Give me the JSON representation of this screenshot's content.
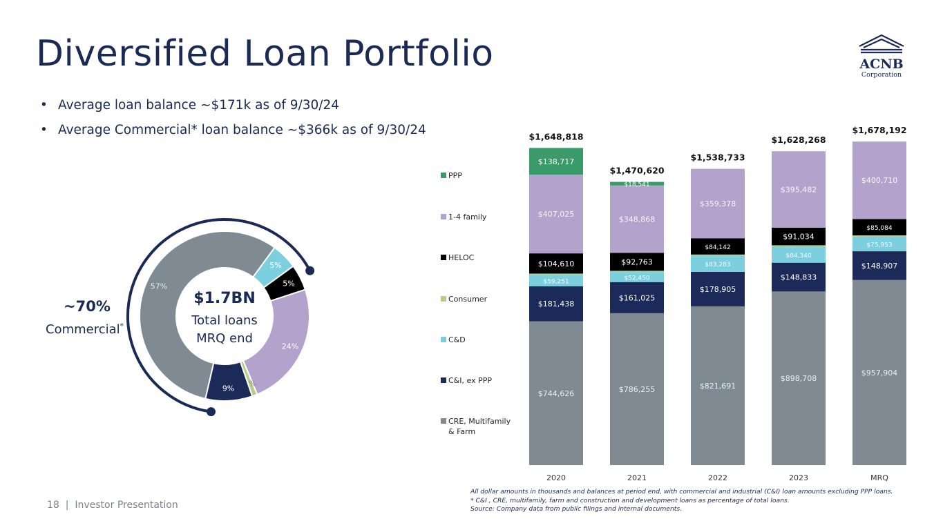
{
  "title": "Diversified Loan Portfolio",
  "logo": {
    "name": "ACNB",
    "sub": "Corporation"
  },
  "bullets": [
    "Average loan balance ~$171k as of 9/30/24",
    "Average Commercial* loan balance ~$366k as of 9/30/24"
  ],
  "donut": {
    "center_big": "$1.7BN",
    "center_line1": "Total loans",
    "center_line2": "MRQ end",
    "callout_big": "~70%",
    "callout_small": "Commercial",
    "callout_sup": "*",
    "slices": [
      {
        "name": "CRE, Multifamily & Farm",
        "label": "57%",
        "value": 57,
        "color": "#7f8a93"
      },
      {
        "name": "C&D",
        "label": "5%",
        "value": 5,
        "color": "#7ccfdf"
      },
      {
        "name": "HELOC",
        "label": "5%",
        "value": 5,
        "color": "#000000"
      },
      {
        "name": "1-4 family",
        "label": "24%",
        "value": 24,
        "color": "#b3a2cc"
      },
      {
        "name": "Consumer",
        "label": "1%",
        "value": 1,
        "color": "#b5cf8a"
      },
      {
        "name": "C&I, ex PPP",
        "label": "9%",
        "value": 9,
        "color": "#1c2a5a"
      }
    ]
  },
  "chart_data": {
    "type": "bar",
    "stacked": true,
    "categories": [
      "2020",
      "2021",
      "2022",
      "2023",
      "MRQ"
    ],
    "totals": [
      "$1,648,818",
      "$1,470,620",
      "$1,538,733",
      "$1,628,268",
      "$1,678,192"
    ],
    "series": [
      {
        "name": "CRE, Multifamily & Farm",
        "color": "#7f8a93",
        "values": [
          744626,
          786255,
          821691,
          898708,
          957904
        ],
        "labels": [
          "$744,626",
          "$786,255",
          "$821,691",
          "$898,708",
          "$957,904"
        ]
      },
      {
        "name": "C&I, ex PPP",
        "color": "#1c2a5a",
        "values": [
          181438,
          161025,
          178905,
          148833,
          148907
        ],
        "labels": [
          "$181,438",
          "$161,025",
          "$178,905",
          "$148,833",
          "$148,907"
        ]
      },
      {
        "name": "C&D",
        "color": "#7ccfdf",
        "values": [
          59251,
          52450,
          83283,
          84340,
          75953
        ],
        "labels": [
          "$59,251",
          "$52,450",
          "$83,283",
          "$84,340",
          "$75,953"
        ]
      },
      {
        "name": "Consumer",
        "color": "#b5cf8a",
        "values": [
          6000,
          6000,
          6000,
          6000,
          6000
        ],
        "labels": [
          "",
          "",
          "",
          "",
          ""
        ]
      },
      {
        "name": "HELOC",
        "color": "#000000",
        "values": [
          104610,
          92763,
          84142,
          91034,
          85084
        ],
        "labels": [
          "$104,610",
          "$92,763",
          "$84,142",
          "$91,034",
          "$85,084"
        ]
      },
      {
        "name": "1-4 family",
        "color": "#b3a2cc",
        "values": [
          407025,
          348868,
          359378,
          395482,
          400710
        ],
        "labels": [
          "$407,025",
          "$348,868",
          "$359,378",
          "$395,482",
          "$400,710"
        ]
      },
      {
        "name": "PPP",
        "color": "#3a9a6a",
        "values": [
          138717,
          18541,
          0,
          0,
          0
        ],
        "labels": [
          "$138,717",
          "$18,541",
          "",
          "",
          ""
        ]
      }
    ],
    "legend": [
      "PPP",
      "1-4 family",
      "HELOC",
      "Consumer",
      "C&D",
      "C&I, ex PPP",
      "CRE, Multifamily & Farm"
    ],
    "legend_position": "left",
    "ylim": [
      0,
      1700000
    ],
    "grid": false
  },
  "footnotes": [
    "All dollar amounts in thousands and balances at period end, with commercial and industrial (C&I) loan amounts excluding PPP loans.",
    "* C&I , CRE, multifamily, farm and construction and development loans as percentage of total loans.",
    "Source: Company data from public filings and internal documents."
  ],
  "footer": {
    "page": "18",
    "label": "Investor Presentation"
  }
}
